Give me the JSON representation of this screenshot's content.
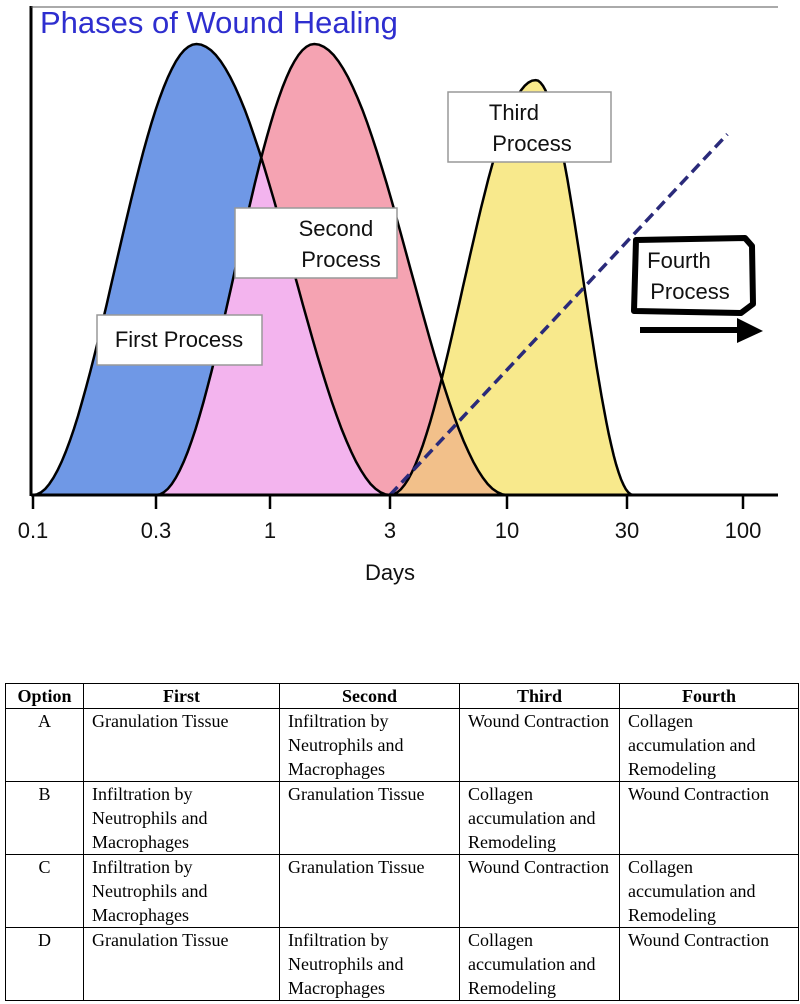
{
  "chart_data": {
    "type": "area",
    "title": "Phases of Wound Healing",
    "xlabel": "Days",
    "ylabel": "",
    "x_scale": "log",
    "x_ticks": [
      0.1,
      0.3,
      1,
      3,
      10,
      30,
      100
    ],
    "x_tick_labels": [
      "0.1",
      "0.3",
      "1",
      "3",
      "10",
      "30",
      "100"
    ],
    "xlim": [
      0.1,
      130
    ],
    "grid": false,
    "series": [
      {
        "label": "First Process",
        "start_day": 0.1,
        "peak_day": 0.46,
        "end_day": 3,
        "peak_relative": 1.0,
        "color": "#6f98e6"
      },
      {
        "label": "Second Process",
        "start_day": 0.3,
        "peak_day": 1.5,
        "end_day": 10,
        "peak_relative": 1.0,
        "color": "#f5a3b2"
      },
      {
        "label": "Third Process",
        "start_day": 3,
        "peak_day": 13,
        "end_day": 32,
        "peak_relative": 0.92,
        "color": "#f8e98c"
      },
      {
        "label": "Fourth Process",
        "shape": "dashed-line",
        "start_day": 3,
        "end_day": 85,
        "end_relative": 0.8,
        "color": "#2a2a7a"
      }
    ],
    "overlap_colors": {
      "first_second": "#f3b4ee",
      "second_third": "#f2c08a"
    },
    "accent_outline": "#000000"
  },
  "table": {
    "headers": [
      "Option",
      "First",
      "Second",
      "Third",
      "Fourth"
    ],
    "rows": [
      {
        "option": "A",
        "first": "Granulation Tissue",
        "second": "Infiltration by Neutrophils and Macrophages",
        "third": "Wound Contraction",
        "fourth": "Collagen accumulation and Remodeling"
      },
      {
        "option": "B",
        "first": "Infiltration by Neutrophils and Macrophages",
        "second": "Granulation Tissue",
        "third": "Collagen accumulation and Remodeling",
        "fourth": "Wound Contraction"
      },
      {
        "option": "C",
        "first": "Infiltration by Neutrophils and Macrophages",
        "second": "Granulation Tissue",
        "third": "Wound Contraction",
        "fourth": "Collagen accumulation and Remodeling"
      },
      {
        "option": "D",
        "first": "Granulation Tissue",
        "second": "Infiltration by Neutrophils and Macrophages",
        "third": "Collagen accumulation and Remodeling",
        "fourth": "Wound Contraction"
      }
    ]
  }
}
